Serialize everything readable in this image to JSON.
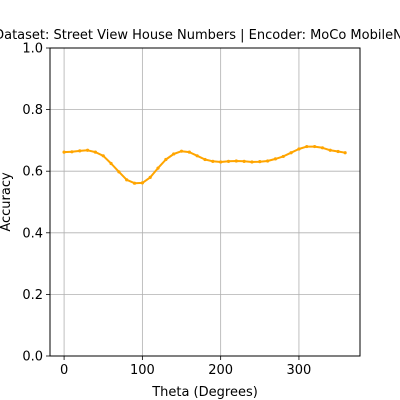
{
  "chart_data": {
    "type": "line",
    "title": "Dataset: Street View House Numbers | Encoder: MoCo MobileNet",
    "xlabel": "Theta (Degrees)",
    "ylabel": "Accuracy",
    "xlim": [
      -18,
      378
    ],
    "ylim": [
      0.0,
      1.0
    ],
    "xticks": [
      0,
      100,
      200,
      300
    ],
    "yticks": [
      0.0,
      0.2,
      0.4,
      0.6,
      0.8,
      1.0
    ],
    "xtick_labels": [
      "0",
      "100",
      "200",
      "300"
    ],
    "ytick_labels": [
      "0.0",
      "0.2",
      "0.4",
      "0.6",
      "0.8",
      "1.0"
    ],
    "grid": true,
    "series": [
      {
        "color": "#ffa500",
        "x": [
          0,
          10,
          20,
          30,
          40,
          50,
          60,
          70,
          80,
          90,
          100,
          110,
          120,
          130,
          140,
          150,
          160,
          170,
          180,
          190,
          200,
          210,
          220,
          230,
          240,
          250,
          260,
          270,
          280,
          290,
          300,
          310,
          320,
          330,
          340,
          350,
          359
        ],
        "y": [
          0.662,
          0.663,
          0.666,
          0.668,
          0.662,
          0.65,
          0.625,
          0.598,
          0.572,
          0.561,
          0.562,
          0.58,
          0.61,
          0.638,
          0.656,
          0.665,
          0.662,
          0.65,
          0.638,
          0.632,
          0.63,
          0.632,
          0.633,
          0.632,
          0.63,
          0.631,
          0.633,
          0.64,
          0.648,
          0.66,
          0.672,
          0.68,
          0.68,
          0.676,
          0.668,
          0.664,
          0.66
        ]
      }
    ]
  }
}
